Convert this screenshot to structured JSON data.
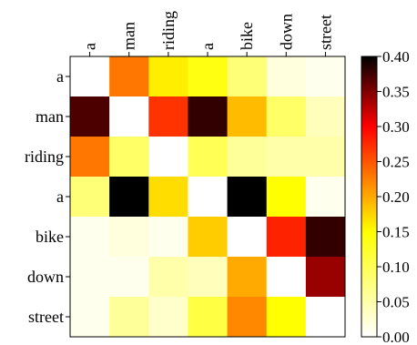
{
  "chart_data": {
    "type": "heatmap",
    "title": "",
    "x_labels": [
      "a",
      "man",
      "riding",
      "a",
      "bike",
      "down",
      "street"
    ],
    "y_labels": [
      "a",
      "man",
      "riding",
      "a",
      "bike",
      "down",
      "street"
    ],
    "values": [
      [
        0.0,
        0.23,
        0.16,
        0.14,
        0.08,
        0.02,
        0.01
      ],
      [
        0.37,
        0.0,
        0.27,
        0.38,
        0.19,
        0.09,
        0.04
      ],
      [
        0.23,
        0.09,
        0.0,
        0.1,
        0.06,
        0.05,
        0.05
      ],
      [
        0.08,
        0.41,
        0.17,
        0.0,
        0.4,
        0.15,
        0.01
      ],
      [
        0.01,
        0.02,
        0.01,
        0.18,
        0.0,
        0.28,
        0.38
      ],
      [
        0.01,
        0.01,
        0.05,
        0.04,
        0.2,
        0.0,
        0.34
      ],
      [
        0.01,
        0.06,
        0.03,
        0.11,
        0.22,
        0.15,
        0.0
      ]
    ],
    "colorbar": {
      "min": 0.0,
      "max": 0.4,
      "ticks": [
        "0.00",
        "0.05",
        "0.10",
        "0.15",
        "0.20",
        "0.25",
        "0.30",
        "0.35",
        "0.40"
      ],
      "colormap": "hot_r"
    }
  }
}
